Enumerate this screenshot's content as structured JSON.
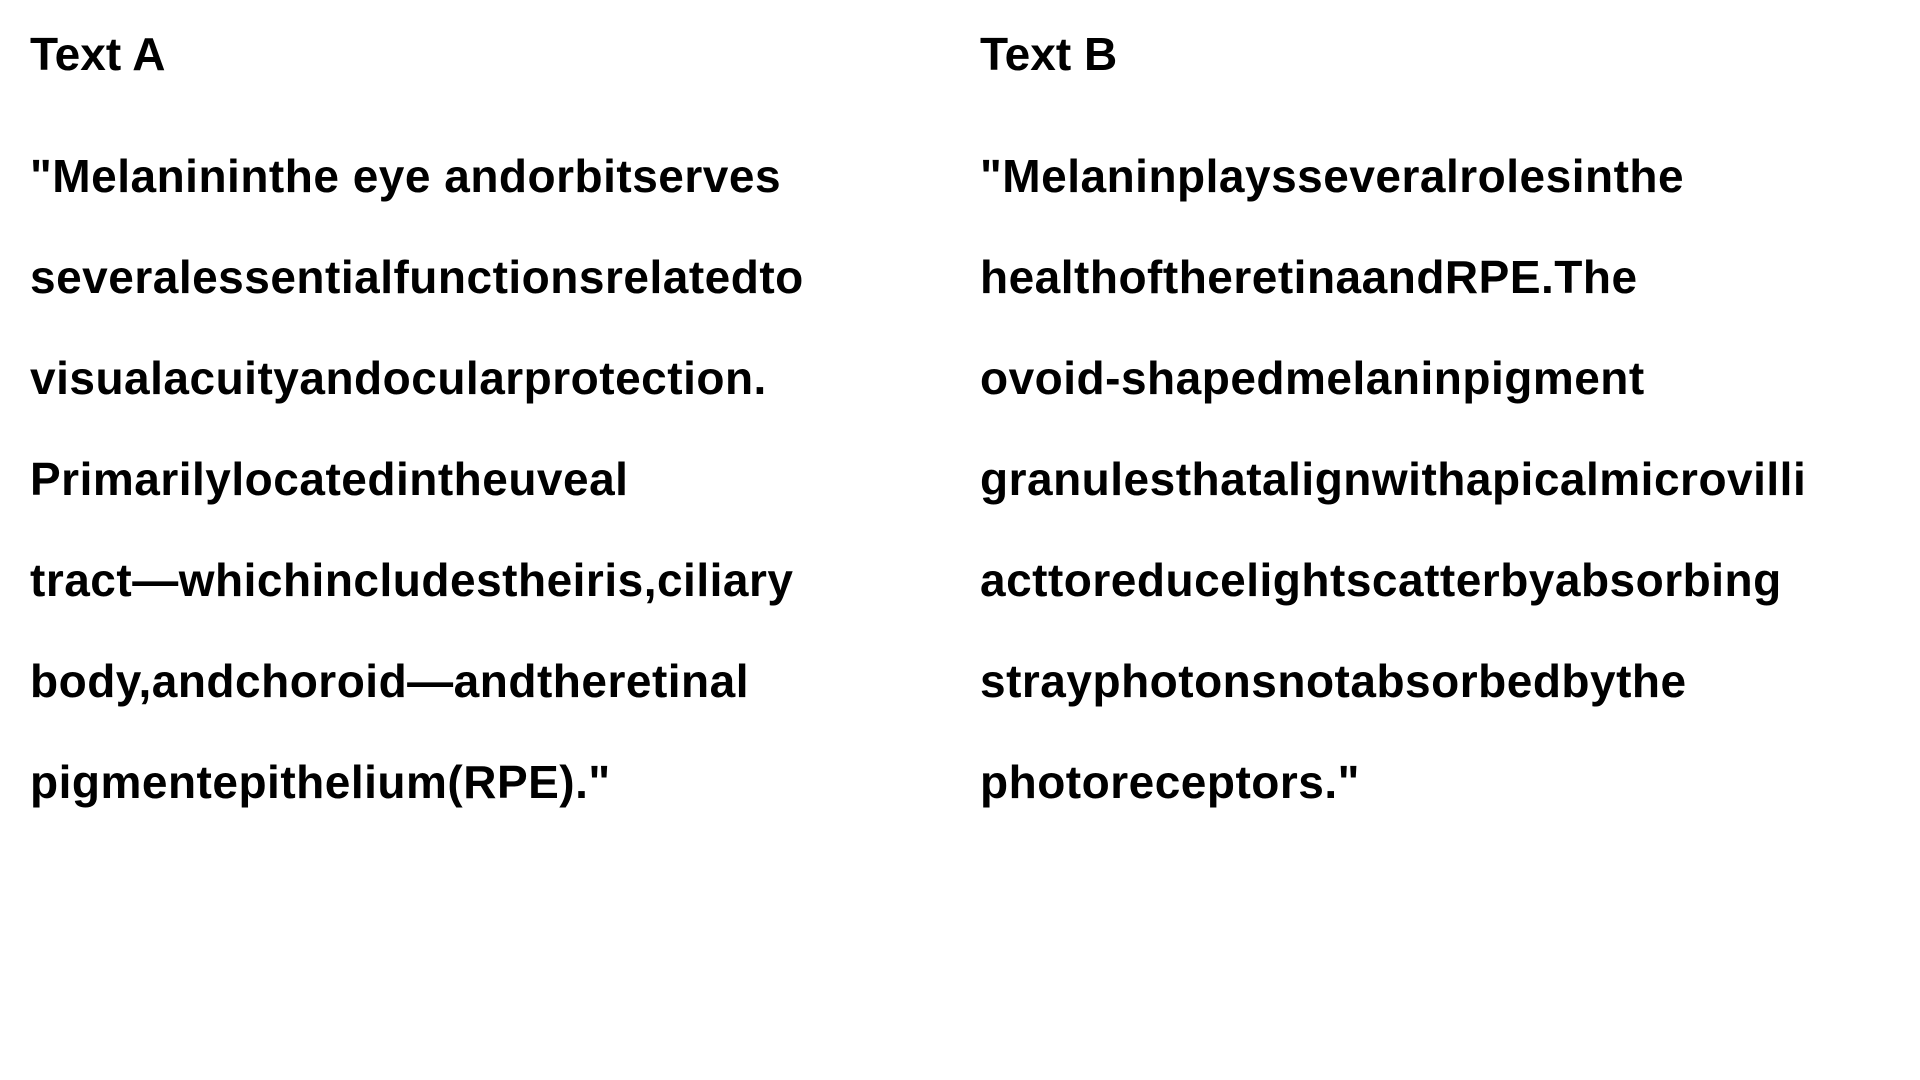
{
  "text_a": {
    "heading": "Text A",
    "lines": [
      "\"Melanininthe eye andorbitserves",
      "severalessentialfunctionsrelatedto",
      "visualacuityandocularprotection.",
      "Primarilylocatedintheuveal",
      "tract—whichincludestheiris,ciliary",
      "body,andchoroid—andtheretinal",
      "pigmentepithelium(RPE).\""
    ]
  },
  "text_b": {
    "heading": "Text B",
    "lines": [
      "\"Melaninplaysseveralrolesinthe",
      "healthoftheretinaandRPE.The",
      "ovoid-shapedmelaninpigment",
      "granulesthatalignwithapicalmicrovilli",
      "acttoreducelightscatterbyabsorbing",
      "strayphotonsnotabsorbedbythe",
      "photoreceptors.\""
    ]
  }
}
